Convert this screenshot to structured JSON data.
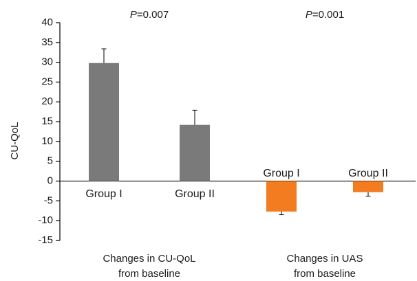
{
  "chart_data": {
    "type": "bar",
    "ylabel": "CU-QoL",
    "ylim": [
      -15,
      40
    ],
    "yticks": [
      40,
      35,
      30,
      25,
      20,
      15,
      10,
      5,
      0,
      -5,
      -10,
      -15
    ],
    "grid": false,
    "groups": [
      {
        "label_line1": "Changes in CU-QoL",
        "label_line2": "from baseline",
        "p_prefix": "P",
        "p_value": "=0.007",
        "color": "#7a7a7a",
        "bars": [
          {
            "category": "Group I",
            "value": 29.8,
            "error": 3.6
          },
          {
            "category": "Group II",
            "value": 14.2,
            "error": 3.7
          }
        ]
      },
      {
        "label_line1": "Changes in UAS",
        "label_line2": "from baseline",
        "p_prefix": "P",
        "p_value": "=0.001",
        "color": "#f37b20",
        "bars": [
          {
            "category": "Group I",
            "value": -7.7,
            "error": 0.8
          },
          {
            "category": "Group II",
            "value": -2.8,
            "error": 1.0
          }
        ]
      }
    ]
  }
}
